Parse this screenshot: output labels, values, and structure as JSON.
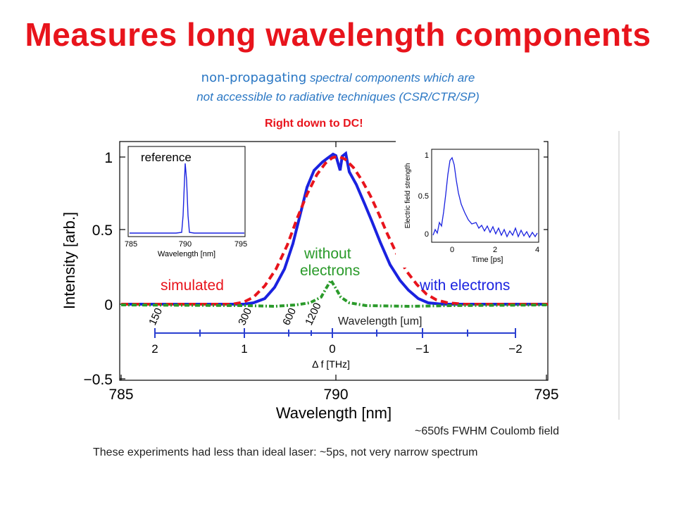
{
  "slide": {
    "title": "Measures long wavelength components",
    "subtitle_normal": "non-propagating",
    "subtitle_italic_1": " spectral components which are",
    "subtitle_italic_2": "not accessible to radiative techniques (CSR/CTR/SP)",
    "right_down": "Right down to DC!",
    "note_fwhm": "~650fs FWHM Coulomb field",
    "note_laser": "These experiments had less than ideal laser:   ~5ps, not very narrow spectrum"
  },
  "figure": {
    "main_xlabel": "Wavelength [nm]",
    "main_ylabel": "Intensity [arb.]",
    "main_xticks": [
      "785",
      "790",
      "795"
    ],
    "main_yticks": [
      "1",
      "0.5",
      "0",
      "−0.5"
    ],
    "label_without": "without",
    "label_electrons": "electrons",
    "label_simulated": "simulated",
    "label_with": "with electrons",
    "wavelength_label": "Wavelength [um]",
    "wavelength_ticks": [
      "150",
      "300",
      "600",
      "1200"
    ],
    "thz_ticks": [
      "2",
      "1",
      "0",
      "−1",
      "−2"
    ],
    "thz_label": "Δ f [THz]",
    "inset_ref_title": "reference",
    "inset_ref_xlabel": "Wavelength [nm]",
    "inset_ref_xticks": [
      "785",
      "790",
      "795"
    ],
    "inset_time_xlabel": "Time [ps]",
    "inset_time_ylabel": "Electric field strength",
    "inset_time_xticks": [
      "0",
      "2",
      "4"
    ],
    "inset_time_yticks": [
      "1",
      "0.5",
      "0"
    ]
  },
  "colors": {
    "title": "#e8141c",
    "subtitle": "#2a77c4",
    "with_electrons": "#1a22e0",
    "simulated": "#e8141c",
    "without_electrons": "#2a9a2a",
    "thz_axis": "#2a3fd0"
  },
  "chart_data": [
    {
      "type": "line",
      "xlabel": "Wavelength [nm]",
      "ylabel": "Intensity [arb.]",
      "xlim": [
        785,
        795
      ],
      "ylim": [
        -0.5,
        1.1
      ],
      "series": [
        {
          "name": "with electrons",
          "x": [
            785,
            786,
            787,
            788,
            788.5,
            789,
            789.3,
            789.6,
            789.8,
            790,
            790.1,
            790.2,
            790.4,
            790.7,
            791,
            791.5,
            792,
            793,
            795
          ],
          "y": [
            0,
            0,
            0,
            0.01,
            0.08,
            0.3,
            0.55,
            0.85,
            0.95,
            1.0,
            0.93,
            1.0,
            0.9,
            0.7,
            0.45,
            0.15,
            0.03,
            0,
            0
          ]
        },
        {
          "name": "simulated",
          "x": [
            785,
            786,
            787,
            788,
            788.5,
            789,
            789.3,
            789.6,
            789.8,
            790,
            790.2,
            790.4,
            790.7,
            791,
            791.5,
            792,
            793,
            795
          ],
          "y": [
            0,
            0,
            0,
            0.03,
            0.12,
            0.35,
            0.58,
            0.82,
            0.95,
            1.0,
            0.97,
            0.9,
            0.75,
            0.55,
            0.25,
            0.08,
            0.01,
            0
          ]
        },
        {
          "name": "without electrons",
          "x": [
            785,
            786,
            787,
            788,
            789,
            789.6,
            790,
            790.4,
            791,
            792,
            793,
            795
          ],
          "y": [
            0,
            -0.01,
            0,
            0,
            -0.01,
            0.05,
            0.15,
            0.05,
            -0.01,
            0,
            0,
            0
          ]
        }
      ]
    },
    {
      "type": "line",
      "title": "reference",
      "xlabel": "Wavelength [nm]",
      "xlim": [
        785,
        795
      ],
      "series": [
        {
          "x": [
            785,
            788,
            789.5,
            789.8,
            790,
            790.2,
            790.5,
            792,
            795
          ],
          "y": [
            0,
            0,
            0.01,
            0.3,
            1.0,
            0.3,
            0.01,
            0,
            0
          ]
        }
      ]
    },
    {
      "type": "line",
      "xlabel": "Time [ps]",
      "ylabel": "Electric field strength",
      "xlim": [
        -1,
        4
      ],
      "ylim": [
        -0.05,
        1.1
      ],
      "series": [
        {
          "x": [
            -1,
            -0.5,
            -0.2,
            0,
            0.2,
            0.5,
            1,
            1.5,
            2,
            3,
            4
          ],
          "y": [
            0.02,
            0.1,
            0.55,
            0.95,
            0.85,
            0.45,
            0.2,
            0.12,
            0.1,
            0.05,
            0.03
          ]
        }
      ]
    }
  ]
}
